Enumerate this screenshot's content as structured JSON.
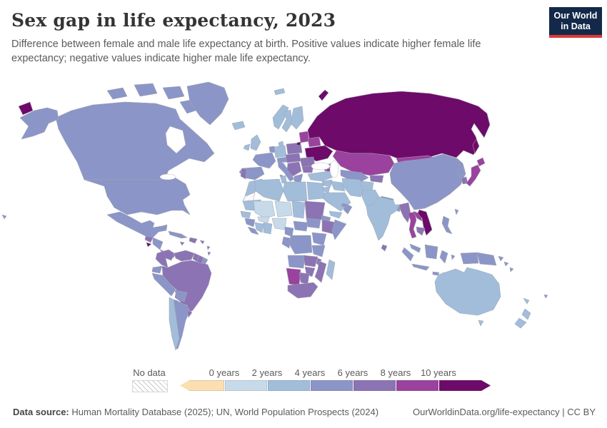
{
  "header": {
    "title": "Sex gap in life expectancy, 2023",
    "subtitle": "Difference between female and male life expectancy at birth. Positive values indicate higher female life expectancy; negative values indicate higher male life expectancy."
  },
  "logo": {
    "line1": "Our World",
    "line2": "in Data",
    "bg": "#13294a",
    "accent": "#dc3a35"
  },
  "legend": {
    "no_data_label": "No data",
    "tick_labels": [
      "0 years",
      "2 years",
      "4 years",
      "6 years",
      "8 years",
      "10 years"
    ],
    "band_order": [
      "neg",
      "b0",
      "b2",
      "b4",
      "b6",
      "b8",
      "b10"
    ],
    "band_colors": {
      "neg": "#fbdfb1",
      "b0": "#c7daea",
      "b2": "#a1bdda",
      "b4": "#8b95c7",
      "b6": "#8c73b3",
      "b8": "#9a429e",
      "b10": "#6e0a69"
    }
  },
  "footer": {
    "source_label": "Data source:",
    "source_text": "Human Mortality Database (2025); UN, World Population Prospects (2024)",
    "link_text": "OurWorldinData.org/life-expectancy | CC BY"
  },
  "chart_data": {
    "type": "choropleth",
    "title": "Sex gap in life expectancy, 2023",
    "unit": "years",
    "legend_position": "bottom",
    "bins": [
      {
        "key": "neg",
        "range": "< 0 years"
      },
      {
        "key": "b0",
        "range": "0–2 years"
      },
      {
        "key": "b2",
        "range": "2–4 years"
      },
      {
        "key": "b4",
        "range": "4–6 years"
      },
      {
        "key": "b6",
        "range": "6–8 years"
      },
      {
        "key": "b8",
        "range": "8–10 years"
      },
      {
        "key": "b10",
        "range": "10+ years"
      },
      {
        "key": "nodata",
        "range": "No data"
      }
    ],
    "regions": {
      "russia": "b10",
      "ukraine": "b10",
      "vietnam": "b10",
      "el-salvador": "b10",
      "belarus": "b8",
      "baltic-states": "b8",
      "kazakhstan": "b8",
      "mongolia": "b8",
      "japan": "b8",
      "thailand": "b8",
      "laos": "b8",
      "namibia": "b8",
      "lebanon": "b8",
      "armenia": "b8",
      "colombia": "b6",
      "venezuela": "b6",
      "guyana": "b6",
      "suriname": "b6",
      "brazil": "b6",
      "uruguay": "b6",
      "guatemala": "b6",
      "costa-rica-panama": "b6",
      "jamaica": "b6",
      "hispaniola": "b6",
      "puerto-rico": "b6",
      "lesser-antilles": "b6",
      "portugal": "b6",
      "poland": "b6",
      "central-europe": "b6",
      "romania": "b6",
      "bulgaria": "b6",
      "balkans": "b6",
      "sudan": "b6",
      "ethiopia": "b6",
      "zambia": "b6",
      "malawi": "b6",
      "mozambique": "b6",
      "zimbabwe": "b6",
      "botswana": "b6",
      "south-africa": "b6",
      "sri-lanka": "b6",
      "myanmar": "b6",
      "cambodia": "b6",
      "south-korea": "b6",
      "kyrgyzstan-tajikistan": "b6",
      "caucasus": "b6",
      "israel": "b6",
      "canada": "b4",
      "usa": "b4",
      "greenland": "b4",
      "mexico": "b4",
      "honduras-nicaragua": "b4",
      "cuba": "b4",
      "ecuador": "b4",
      "peru": "b4",
      "bolivia": "b4",
      "paraguay": "b4",
      "argentina": "b4",
      "french-guiana": "b4",
      "france": "b4",
      "benelux": "b4",
      "spain": "b4",
      "italy": "b4",
      "alpine": "b4",
      "greece": "b4",
      "china": "b4",
      "north-korea": "b4",
      "taiwan": "b4",
      "nepal": "b4",
      "bangladesh": "b4",
      "uzbekistan-turkmenistan": "b4",
      "philippines": "b4",
      "malaysia": "b4",
      "indonesia": "b4",
      "papua-new-guinea": "b4",
      "oman": "b4",
      "uae": "b4",
      "cameroon": "b4",
      "central-african-republic": "b4",
      "south-sudan": "b4",
      "drc": "b4",
      "gabon-congo": "b4",
      "uganda-kenya": "b4",
      "tanzania": "b4",
      "somalia": "b4",
      "angola": "b4",
      "eritrea": "b4",
      "guinea": "b4",
      "sierra-leone-liberia": "b4",
      "fiji": "b4",
      "solomon-islands": "b4",
      "hawaii": "b4",
      "uk": "b2",
      "ireland": "b2",
      "iceland": "b2",
      "norway": "b2",
      "sweden": "b2",
      "finland": "b2",
      "svalbard": "b2",
      "denmark": "b2",
      "germany": "b2",
      "turkey": "b2",
      "syria": "b2",
      "jordan": "b2",
      "iraq": "b2",
      "saudi-arabia": "b2",
      "yemen": "b2",
      "iran": "b2",
      "afghanistan": "b2",
      "pakistan": "b2",
      "india": "b2",
      "morocco": "b2",
      "algeria": "b2",
      "tunisia": "b2",
      "libya": "b2",
      "egypt": "b2",
      "mauritania": "b2",
      "chad": "b2",
      "senegal": "b2",
      "cote-divoire": "b2",
      "ghana-togo-benin": "b2",
      "madagascar": "b2",
      "australia": "b2",
      "tasmania": "b2",
      "new-zealand": "b2",
      "new-caledonia": "b2",
      "chile": "b2",
      "mali": "b0",
      "niger": "b0",
      "nigeria": "b0",
      "burkina-faso": "b0",
      "western-sahara": "nodata"
    }
  }
}
